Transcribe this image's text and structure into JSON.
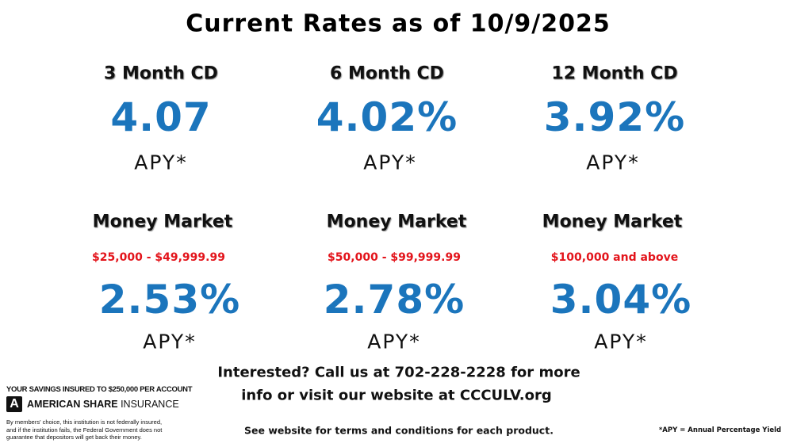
{
  "title": "Current Rates as of 10/9/2025",
  "products": [
    {
      "name": "3 Month CD",
      "rate": "4.07",
      "apy": "APY*"
    },
    {
      "name": "6 Month CD",
      "rate": "4.02%",
      "apy": "APY*"
    },
    {
      "name": "12 Month CD",
      "rate": "3.92%",
      "apy": "APY*"
    },
    {
      "name": "Money Market",
      "range": "$25,000 - $49,999.99",
      "rate": "2.53%",
      "apy": "APY*"
    },
    {
      "name": "Money Market",
      "range": "$50,000 - $99,999.99",
      "rate": "2.78%",
      "apy": "APY*"
    },
    {
      "name": "Money Market",
      "range": "$100,000 and above",
      "rate": "3.04%",
      "apy": "APY*"
    }
  ],
  "contact": {
    "lines": [
      "Interested? Call us at 702-228-2228 for more",
      "info or visit our website at CCCULV.org"
    ]
  },
  "terms": "See website for terms and conditions for each product.",
  "apy_note": "*APY = Annual Percentage Yield",
  "insurance": {
    "headline": "YOUR SAVINGS INSURED TO $250,000 PER ACCOUNT",
    "logo_letter": "A",
    "brand_bold": "AMERICAN SHARE",
    "brand_rest": "INSURANCE",
    "disclaimer": [
      "By members' choice, this institution is not federally insured,",
      "and if the institution fails, the Federal Government does not",
      "guarantee that depositors will get back their money."
    ]
  }
}
